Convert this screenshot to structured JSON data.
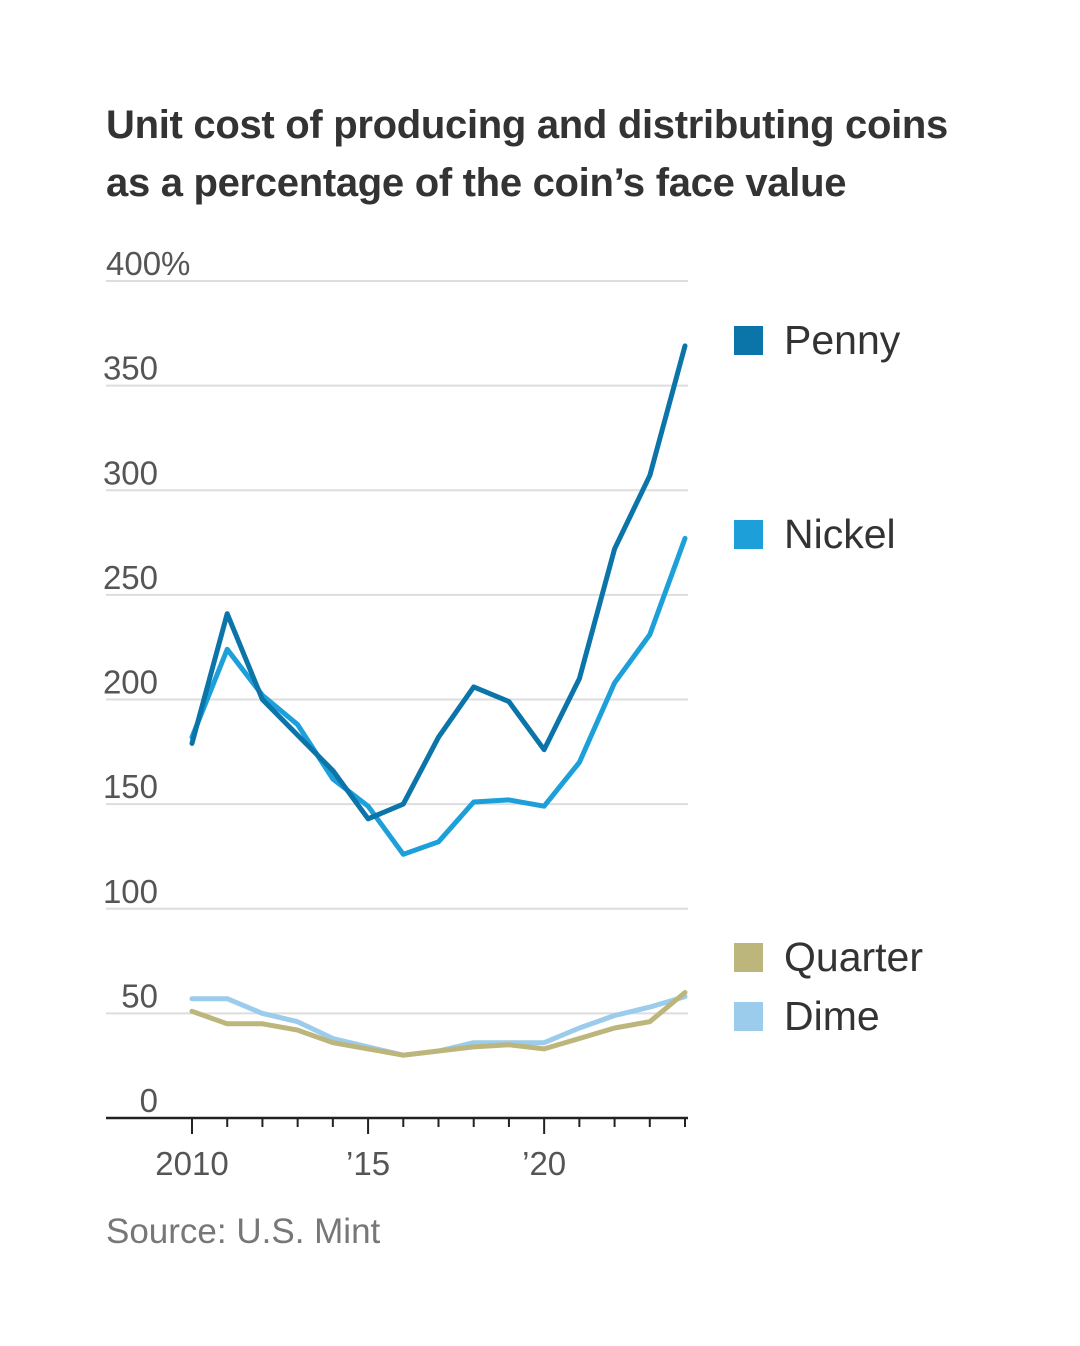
{
  "title": {
    "line1": "Unit cost of producing and distributing coins",
    "line2": "as a percentage of the coin’s face value"
  },
  "source": "Source: U.S. Mint",
  "chart_data": {
    "type": "line",
    "title": "Unit cost of producing and distributing coins as a percentage of the coin’s face value",
    "x": [
      2010,
      2011,
      2012,
      2013,
      2014,
      2015,
      2016,
      2017,
      2018,
      2019,
      2020,
      2021,
      2022,
      2023,
      2024
    ],
    "x_ticks": [
      {
        "value": 2010,
        "label": "2010"
      },
      {
        "value": 2015,
        "label": "’15"
      },
      {
        "value": 2020,
        "label": "’20"
      }
    ],
    "ylim": [
      0,
      400
    ],
    "y_ticks": [
      {
        "value": 0,
        "label": "0"
      },
      {
        "value": 50,
        "label": "50"
      },
      {
        "value": 100,
        "label": "100"
      },
      {
        "value": 150,
        "label": "150"
      },
      {
        "value": 200,
        "label": "200"
      },
      {
        "value": 250,
        "label": "250"
      },
      {
        "value": 300,
        "label": "300"
      },
      {
        "value": 350,
        "label": "350"
      },
      {
        "value": 400,
        "label": "400%"
      }
    ],
    "grid": true,
    "legend_position": "right",
    "series": [
      {
        "name": "Penny",
        "color": "#0b74a8",
        "values": [
          179,
          241,
          200,
          183,
          166,
          143,
          150,
          182,
          206,
          199,
          176,
          210,
          272,
          307,
          369
        ]
      },
      {
        "name": "Nickel",
        "color": "#1da0d9",
        "values": [
          182,
          224,
          202,
          188,
          162,
          149,
          126,
          132,
          151,
          152,
          149,
          170,
          208,
          231,
          277
        ]
      },
      {
        "name": "Quarter",
        "color": "#bdb67c",
        "values": [
          51,
          45,
          45,
          42,
          36,
          33,
          30,
          32,
          34,
          35,
          33,
          38,
          43,
          46,
          60
        ]
      },
      {
        "name": "Dime",
        "color": "#9ccceb",
        "values": [
          57,
          57,
          50,
          46,
          38,
          34,
          30,
          32,
          36,
          36,
          36,
          43,
          49,
          53,
          58
        ]
      }
    ]
  }
}
